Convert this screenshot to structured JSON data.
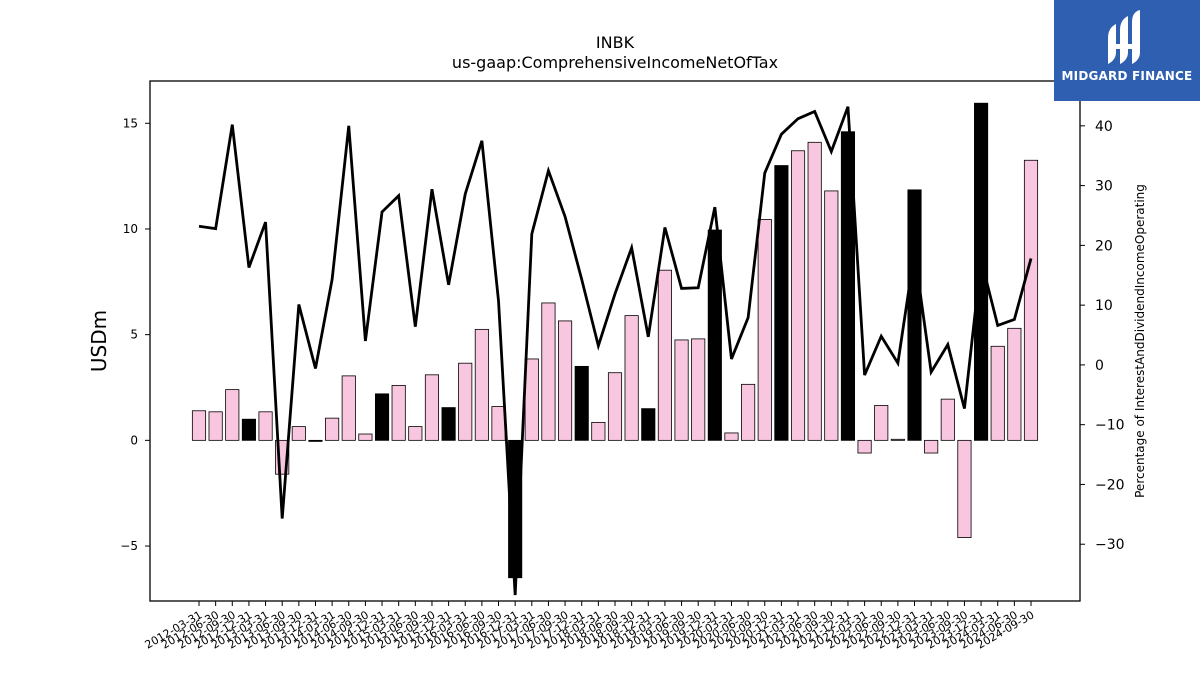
{
  "chart_data": {
    "type": "bar",
    "title": "INBK",
    "subtitle": "us-gaap:ComprehensiveIncomeNetOfTax",
    "ylabel": "USDm",
    "y2label": "Percentage of InterestAndDividendIncomeOperating",
    "ylim": [
      -7.6,
      17.0
    ],
    "y2lim": [
      -39.5,
      47.5
    ],
    "yticks": [
      -5,
      0,
      5,
      10,
      15
    ],
    "y2ticks": [
      -30,
      -20,
      -10,
      0,
      10,
      20,
      30,
      40
    ],
    "categories": [
      "2012-03-31",
      "2012-06-30",
      "2012-09-30",
      "2012-12-31",
      "2013-03-31",
      "2013-06-30",
      "2013-09-30",
      "2013-12-31",
      "2014-03-31",
      "2014-06-30",
      "2014-09-30",
      "2014-12-31",
      "2015-03-31",
      "2015-06-30",
      "2015-09-30",
      "2015-12-31",
      "2016-03-31",
      "2016-06-30",
      "2016-09-30",
      "2016-12-31",
      "2017-03-31",
      "2017-06-30",
      "2017-09-30",
      "2017-12-31",
      "2018-03-31",
      "2018-06-30",
      "2018-09-30",
      "2018-12-31",
      "2019-03-31",
      "2019-06-30",
      "2019-09-30",
      "2019-12-31",
      "2020-03-31",
      "2020-06-30",
      "2020-09-30",
      "2020-12-31",
      "2021-03-31",
      "2021-06-30",
      "2021-09-30",
      "2021-12-31",
      "2022-03-31",
      "2022-06-30",
      "2022-09-30",
      "2022-12-31",
      "2023-03-31",
      "2023-06-30",
      "2023-09-30",
      "2023-12-31",
      "2024-03-31",
      "2024-06-30",
      "2024-09-30"
    ],
    "series": [
      {
        "type": "bar",
        "values": [
          1.4,
          1.35,
          2.4,
          1.0,
          1.35,
          -1.6,
          0.65,
          -0.05,
          1.05,
          3.05,
          0.3,
          2.2,
          2.6,
          0.65,
          3.1,
          1.55,
          3.65,
          5.25,
          1.6,
          -6.5,
          3.85,
          6.5,
          5.65,
          3.5,
          0.85,
          3.2,
          5.9,
          1.5,
          8.05,
          4.75,
          4.8,
          9.95,
          0.35,
          2.65,
          10.45,
          13.0,
          13.7,
          14.1,
          11.8,
          14.6,
          -0.6,
          1.65,
          0.05,
          11.85,
          -0.6,
          1.95,
          -4.6,
          15.95,
          4.45,
          5.3,
          13.25
        ],
        "highlighted": [
          false,
          false,
          false,
          true,
          false,
          false,
          false,
          true,
          false,
          false,
          false,
          true,
          false,
          false,
          false,
          true,
          false,
          false,
          false,
          true,
          false,
          false,
          false,
          true,
          false,
          false,
          false,
          true,
          false,
          false,
          false,
          true,
          false,
          false,
          false,
          true,
          false,
          false,
          false,
          true,
          false,
          false,
          false,
          true,
          false,
          false,
          false,
          true,
          false,
          false,
          false
        ],
        "color": "#f9c6e0",
        "highlight_color": "#000000"
      },
      {
        "type": "line",
        "axis": "right",
        "values": [
          23.2,
          22.8,
          40.2,
          16.3,
          23.9,
          -25.7,
          10.1,
          -0.6,
          14.3,
          40.0,
          4.0,
          25.6,
          28.3,
          6.4,
          29.4,
          13.4,
          28.6,
          37.5,
          10.7,
          -38.5,
          21.9,
          32.5,
          24.8,
          14.3,
          3.2,
          11.9,
          19.6,
          4.7,
          23.0,
          12.8,
          12.9,
          26.4,
          1.0,
          7.9,
          32.1,
          38.6,
          41.2,
          42.4,
          35.7,
          43.2,
          -1.7,
          4.8,
          0.3,
          18.9,
          -1.2,
          3.4,
          -7.3,
          17.6,
          6.6,
          7.6,
          17.8
        ],
        "color": "#000000"
      }
    ],
    "grid": false,
    "legend": "none"
  },
  "brand": {
    "name": "MIDGARD FINANCE",
    "icon": "midgard-logo-icon",
    "color": "#2f5fb0"
  }
}
